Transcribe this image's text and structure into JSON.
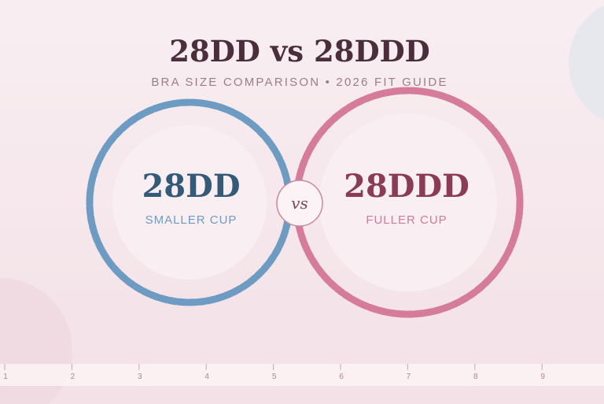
{
  "header": {
    "title": "28DD vs 28DDD",
    "subtitle": "BRA SIZE COMPARISON • 2026 FIT GUIDE"
  },
  "left": {
    "size": "28DD",
    "caption": "SMALLER CUP"
  },
  "right": {
    "size": "28DDD",
    "caption": "FULLER CUP"
  },
  "badge": "vs",
  "ruler": {
    "labels": [
      1,
      2,
      3,
      4,
      5,
      6,
      7,
      8,
      9
    ]
  }
}
